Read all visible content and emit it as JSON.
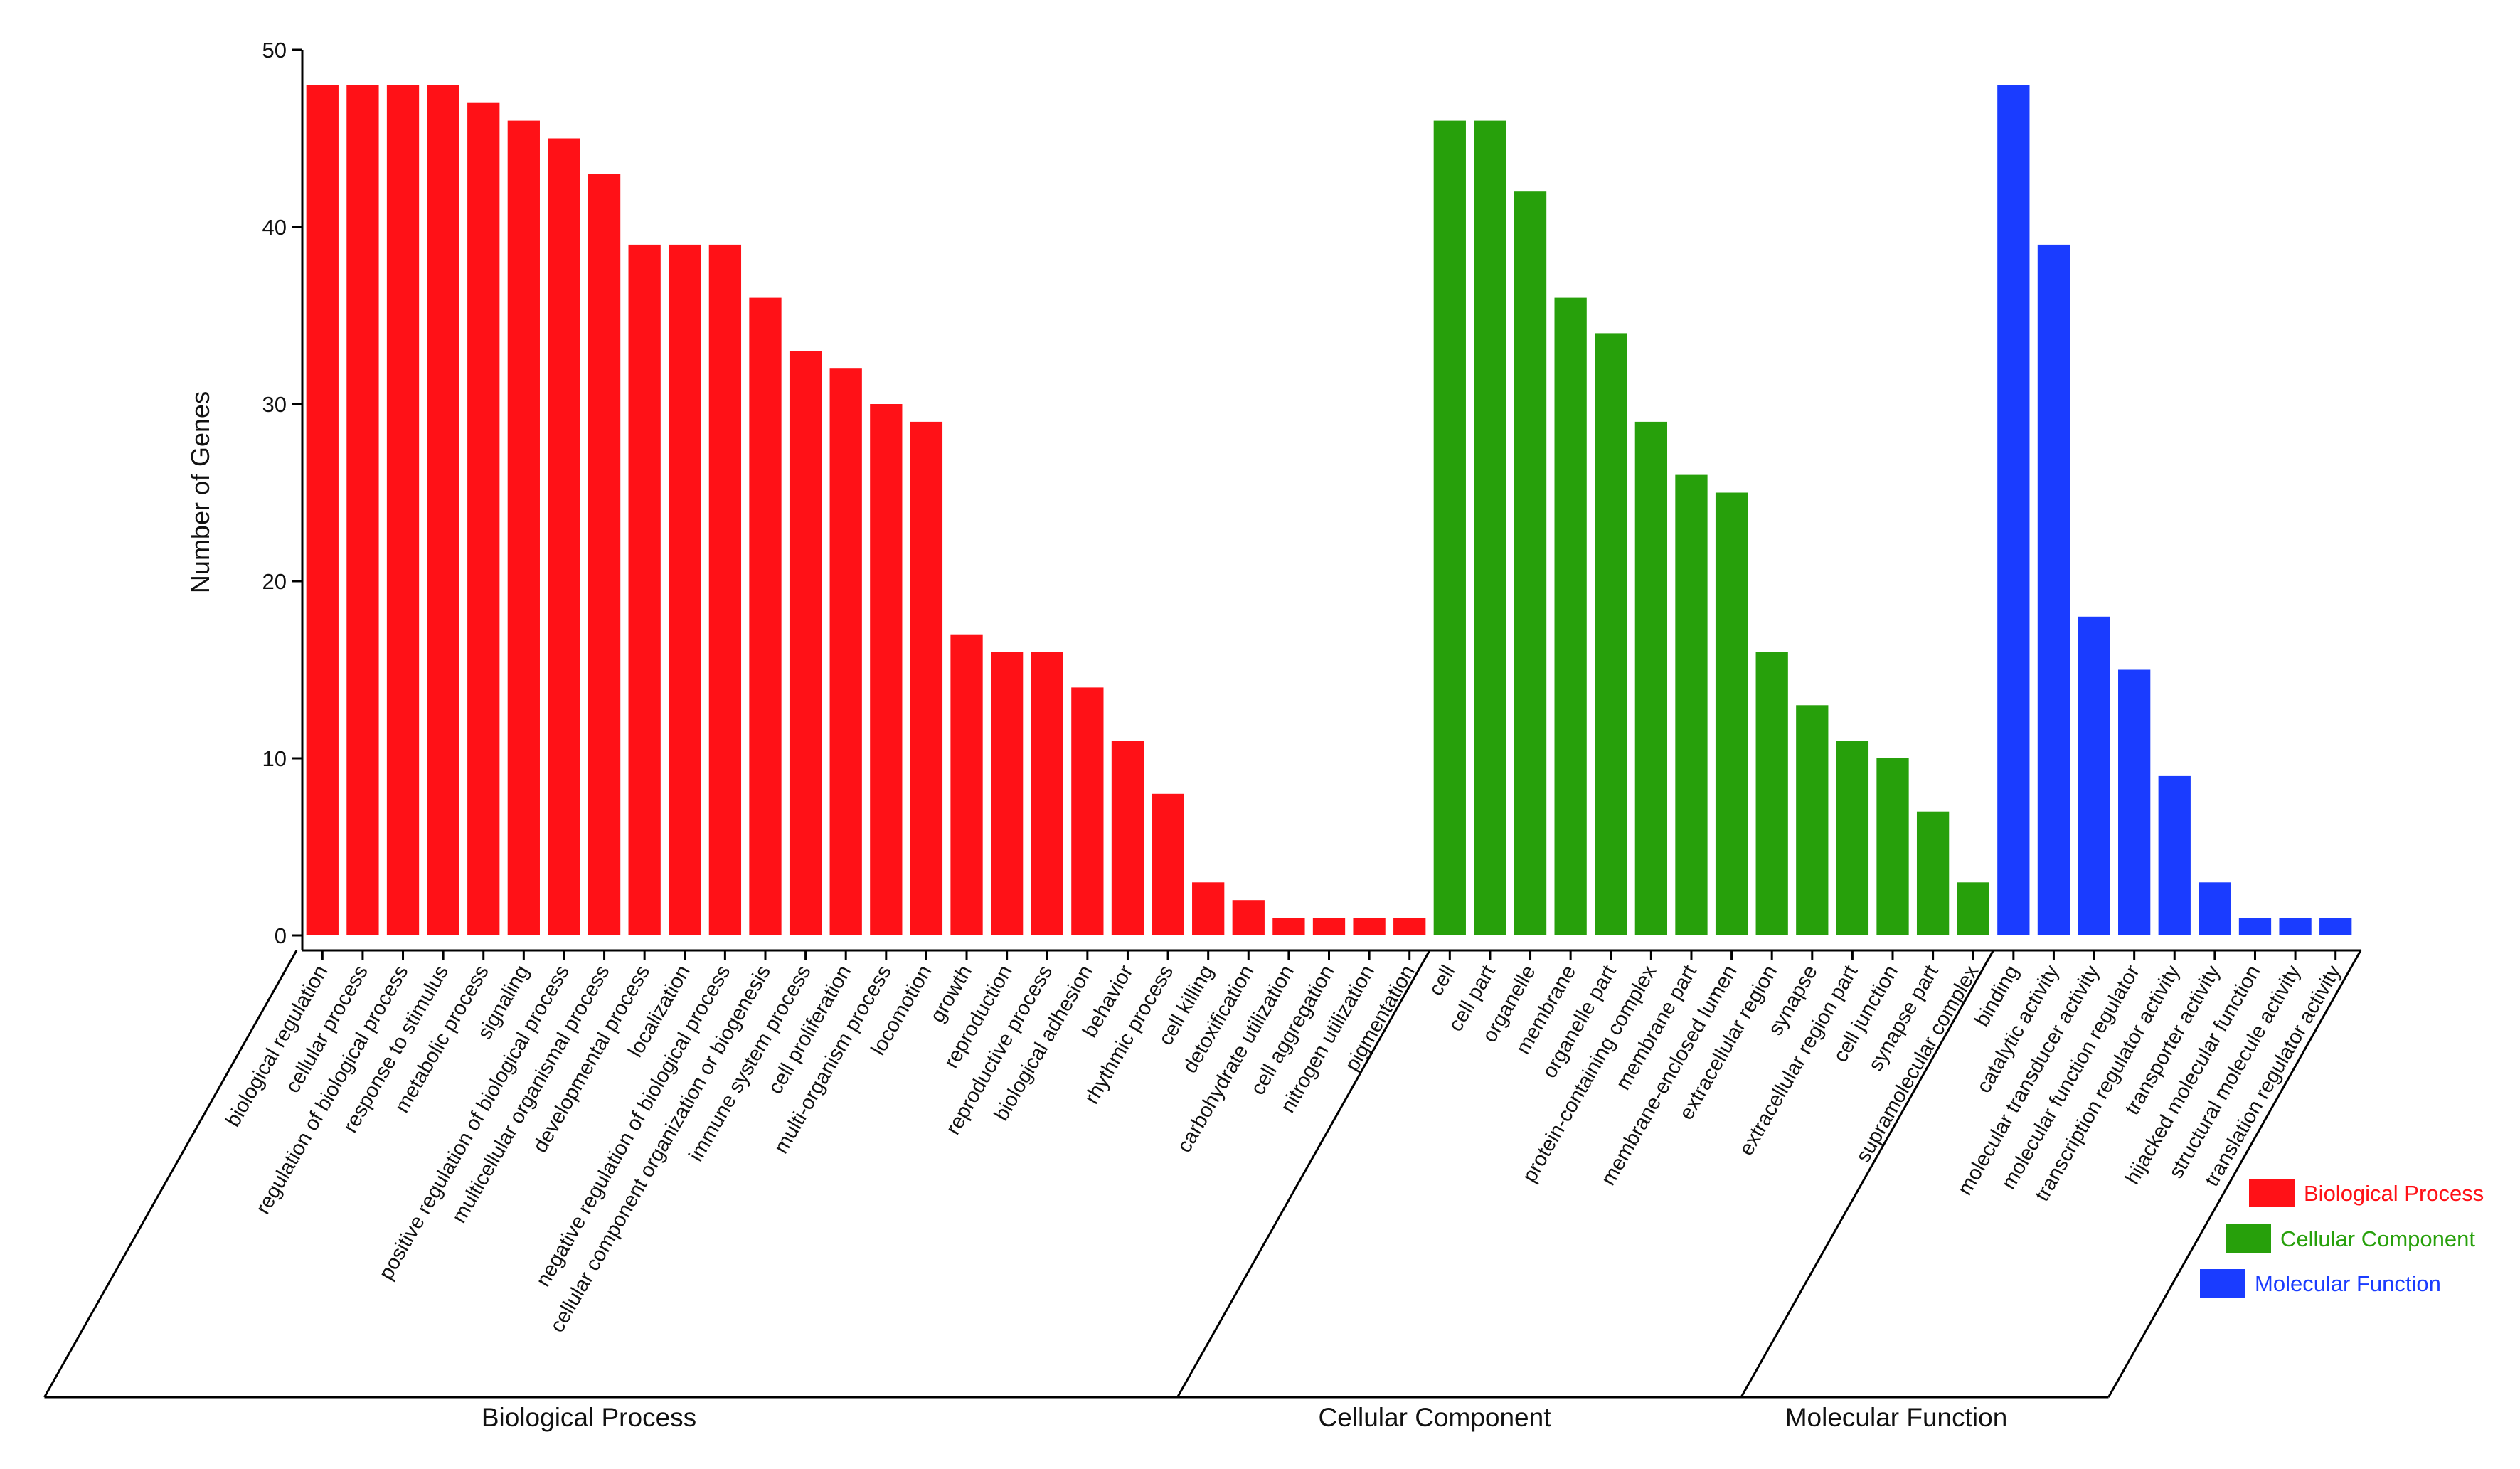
{
  "chart_data": {
    "type": "bar",
    "ylabel": "Number of Genes",
    "ylim": [
      0,
      50
    ],
    "yticks": [
      0,
      10,
      20,
      30,
      40,
      50
    ],
    "grid": false,
    "legend_position": "right",
    "groups": [
      {
        "name": "Biological Process",
        "color": "#ff1117",
        "categories": [
          "biological regulation",
          "cellular process",
          "regulation of biological process",
          "response to stimulus",
          "metabolic process",
          "signaling",
          "positive regulation of biological process",
          "multicellular organismal process",
          "developmental process",
          "localization",
          "negative regulation of biological process",
          "cellular component organization or biogenesis",
          "immune system process",
          "cell proliferation",
          "multi-organism process",
          "locomotion",
          "growth",
          "reproduction",
          "reproductive process",
          "biological adhesion",
          "behavior",
          "rhythmic process",
          "cell killing",
          "detoxification",
          "carbohydrate utilization",
          "cell aggregation",
          "nitrogen utilization",
          "pigmentation"
        ],
        "values": [
          48,
          48,
          48,
          48,
          47,
          46,
          45,
          43,
          39,
          39,
          39,
          36,
          33,
          32,
          30,
          29,
          17,
          16,
          16,
          14,
          11,
          8,
          3,
          2,
          1,
          1,
          1,
          1
        ]
      },
      {
        "name": "Cellular Component",
        "color": "#27a00b",
        "categories": [
          "cell",
          "cell part",
          "organelle",
          "membrane",
          "organelle part",
          "protein-containing complex",
          "membrane part",
          "membrane-enclosed lumen",
          "extracellular region",
          "synapse",
          "extracellular region part",
          "cell junction",
          "synapse part",
          "supramolecular complex"
        ],
        "values": [
          46,
          46,
          42,
          36,
          34,
          29,
          26,
          25,
          16,
          13,
          11,
          10,
          7,
          3
        ]
      },
      {
        "name": "Molecular Function",
        "color": "#1a3cff",
        "categories": [
          "binding",
          "catalytic activity",
          "molecular transducer activity",
          "molecular function regulator",
          "transcription regulator activity",
          "transporter activity",
          "hijacked molecular function",
          "structural molecule activity",
          "translation regulator activity"
        ],
        "values": [
          48,
          39,
          18,
          15,
          9,
          3,
          1,
          1,
          1
        ]
      }
    ],
    "legend": [
      {
        "label": "Biological Process",
        "color": "#ff1117"
      },
      {
        "label": "Cellular Component",
        "color": "#27a00b"
      },
      {
        "label": "Molecular Function",
        "color": "#1a3cff"
      }
    ]
  }
}
